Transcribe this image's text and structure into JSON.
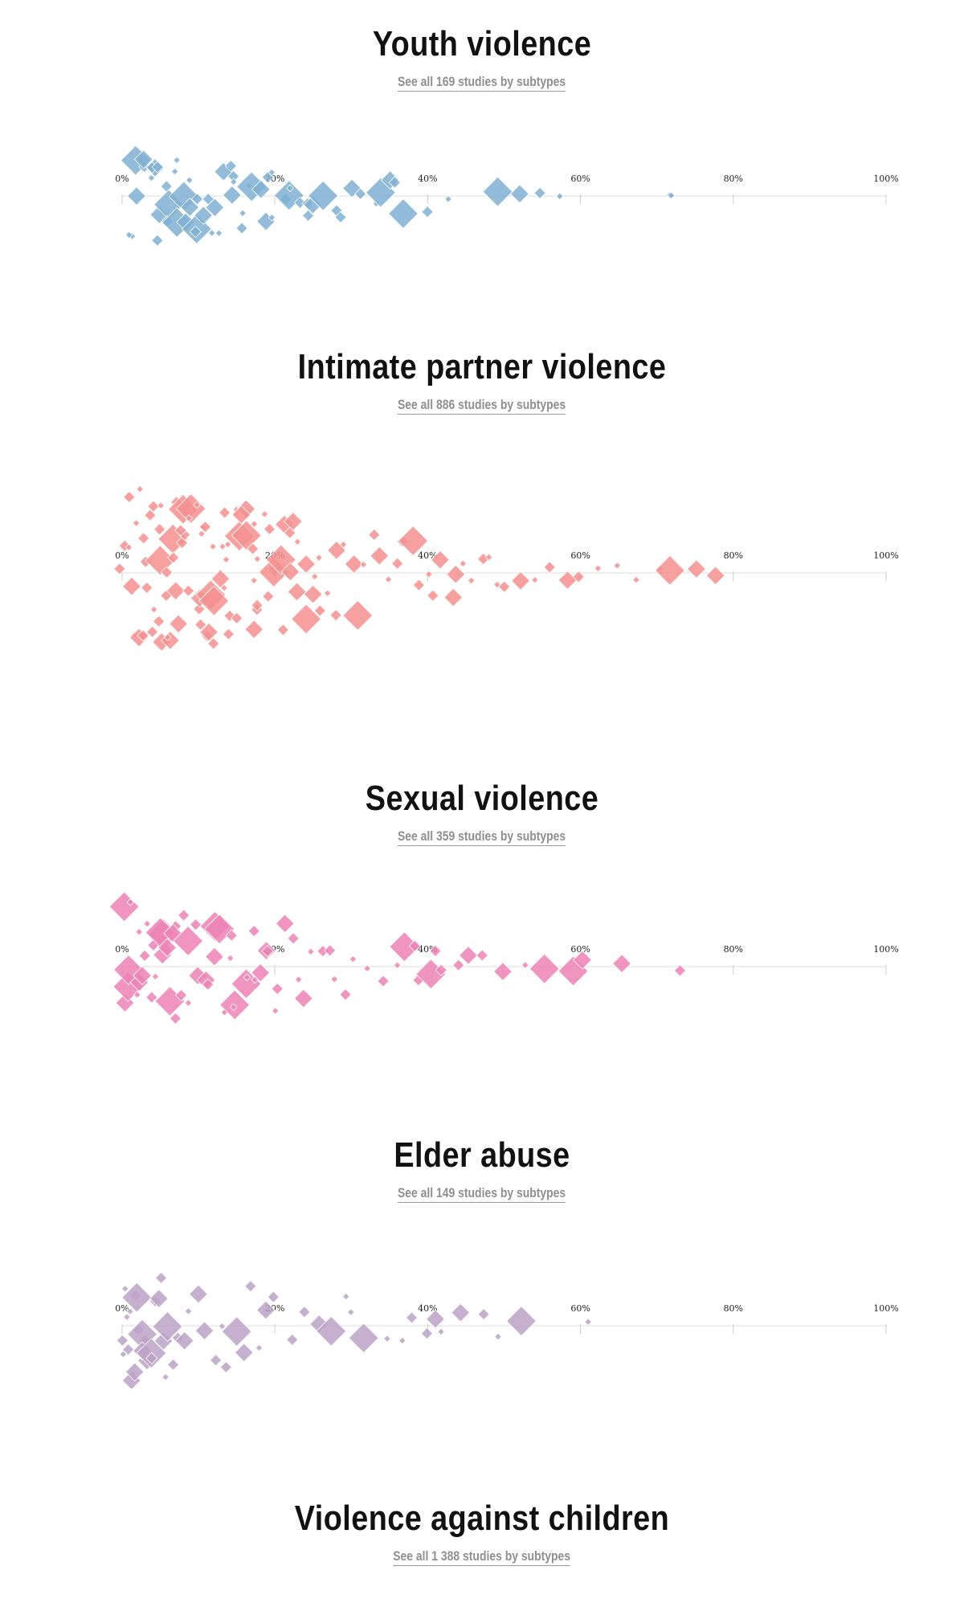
{
  "sections": [
    {
      "title": "Youth violence",
      "link": "See all 169 studies by subtypes",
      "color": "#7fb0d3"
    },
    {
      "title": "Intimate partner violence",
      "link": "See all 886 studies by subtypes",
      "color": "#f48f8f"
    },
    {
      "title": "Sexual violence",
      "link": "See all 359 studies by subtypes",
      "color": "#ec82b4"
    },
    {
      "title": "Elder abuse",
      "link": "See all 149 studies by subtypes",
      "color": "#bca2c7"
    },
    {
      "title": "Violence against children",
      "link": "See all 1 388 studies by subtypes"
    }
  ],
  "chart_data": [
    {
      "type": "scatter",
      "series": [
        {
          "values": [
            1,
            1,
            2,
            2,
            3,
            3,
            4,
            4,
            4,
            5,
            5,
            5,
            6,
            6,
            6,
            7,
            7,
            7,
            8,
            8,
            9,
            9,
            10,
            10,
            10,
            11,
            11,
            12,
            12,
            13,
            13,
            14,
            14,
            15,
            15,
            16,
            16,
            17,
            17,
            18,
            19,
            19,
            20,
            20,
            21,
            22,
            22,
            23,
            24,
            24,
            25,
            26,
            28,
            29,
            30,
            31,
            33,
            34,
            35,
            36,
            37,
            40,
            43,
            49,
            52,
            55,
            57,
            72,
            72
          ]
        }
      ],
      "xlim": [
        0,
        100
      ],
      "tick_labels": [
        "0%",
        "20%",
        "40%",
        "60%",
        "80%",
        "100%"
      ]
    },
    {
      "type": "scatter",
      "series": [
        {
          "values": [
            0,
            0,
            1,
            1,
            1,
            2,
            2,
            2,
            2,
            3,
            3,
            3,
            3,
            4,
            4,
            4,
            4,
            5,
            5,
            5,
            5,
            5,
            6,
            6,
            6,
            6,
            7,
            7,
            7,
            7,
            7,
            8,
            8,
            8,
            8,
            9,
            9,
            9,
            9,
            10,
            10,
            10,
            10,
            10,
            11,
            11,
            11,
            11,
            12,
            12,
            12,
            12,
            13,
            13,
            13,
            13,
            14,
            14,
            14,
            14,
            15,
            15,
            15,
            15,
            16,
            16,
            16,
            17,
            17,
            17,
            17,
            18,
            18,
            18,
            19,
            19,
            19,
            20,
            20,
            20,
            21,
            21,
            21,
            22,
            22,
            22,
            23,
            23,
            24,
            24,
            25,
            25,
            26,
            26,
            27,
            28,
            28,
            29,
            30,
            31,
            32,
            33,
            34,
            35,
            36,
            37,
            38,
            39,
            40,
            41,
            42,
            43,
            44,
            45,
            46,
            47,
            48,
            49,
            50,
            52,
            54,
            56,
            58,
            60,
            62,
            65,
            67,
            70,
            72,
            75,
            78
          ]
        }
      ],
      "xlim": [
        0,
        100
      ],
      "tick_labels": [
        "0%",
        "20%",
        "40%",
        "60%",
        "80%",
        "100%"
      ]
    },
    {
      "type": "scatter",
      "series": [
        {
          "values": [
            0,
            0,
            1,
            1,
            1,
            2,
            2,
            2,
            3,
            3,
            3,
            4,
            4,
            4,
            5,
            5,
            5,
            6,
            6,
            6,
            7,
            7,
            7,
            8,
            8,
            9,
            9,
            10,
            10,
            11,
            11,
            12,
            12,
            13,
            13,
            14,
            14,
            15,
            15,
            16,
            16,
            17,
            17,
            18,
            19,
            19,
            20,
            20,
            21,
            22,
            23,
            24,
            25,
            26,
            27,
            28,
            29,
            30,
            32,
            34,
            36,
            37,
            38,
            39,
            40,
            41,
            42,
            44,
            45,
            47,
            50,
            53,
            55,
            59,
            60,
            65,
            73
          ]
        }
      ],
      "xlim": [
        0,
        100
      ],
      "tick_labels": [
        "0%",
        "20%",
        "40%",
        "60%",
        "80%",
        "100%"
      ]
    },
    {
      "type": "scatter",
      "series": [
        {
          "values": [
            0,
            0,
            0,
            1,
            1,
            1,
            1,
            2,
            2,
            2,
            2,
            3,
            3,
            3,
            3,
            4,
            4,
            4,
            5,
            5,
            5,
            6,
            6,
            7,
            7,
            8,
            9,
            10,
            11,
            12,
            13,
            14,
            15,
            16,
            17,
            18,
            19,
            20,
            22,
            24,
            26,
            27,
            29,
            30,
            32,
            35,
            37,
            38,
            40,
            41,
            42,
            44,
            47,
            49,
            52,
            61
          ]
        }
      ],
      "xlim": [
        0,
        100
      ],
      "tick_labels": [
        "0%",
        "20%",
        "40%",
        "60%",
        "80%",
        "100%"
      ]
    }
  ]
}
